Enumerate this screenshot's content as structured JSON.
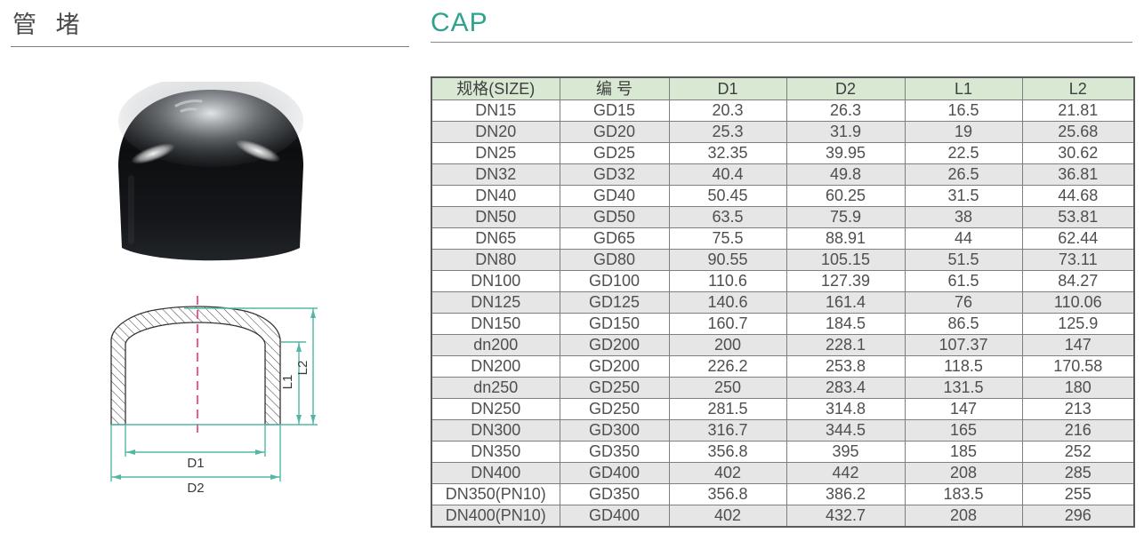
{
  "header": {
    "title_cn": "管 堵",
    "title_en": "CAP"
  },
  "table": {
    "columns": [
      "规格(SIZE)",
      "编 号",
      "D1",
      "D2",
      "L1",
      "L2"
    ],
    "rows": [
      [
        "DN15",
        "GD15",
        "20.3",
        "26.3",
        "16.5",
        "21.81"
      ],
      [
        "DN20",
        "GD20",
        "25.3",
        "31.9",
        "19",
        "25.68"
      ],
      [
        "DN25",
        "GD25",
        "32.35",
        "39.95",
        "22.5",
        "30.62"
      ],
      [
        "DN32",
        "GD32",
        "40.4",
        "49.8",
        "26.5",
        "36.81"
      ],
      [
        "DN40",
        "GD40",
        "50.45",
        "60.25",
        "31.5",
        "44.68"
      ],
      [
        "DN50",
        "GD50",
        "63.5",
        "75.9",
        "38",
        "53.81"
      ],
      [
        "DN65",
        "GD65",
        "75.5",
        "88.91",
        "44",
        "62.44"
      ],
      [
        "DN80",
        "GD80",
        "90.55",
        "105.15",
        "51.5",
        "73.11"
      ],
      [
        "DN100",
        "GD100",
        "110.6",
        "127.39",
        "61.5",
        "84.27"
      ],
      [
        "DN125",
        "GD125",
        "140.6",
        "161.4",
        "76",
        "110.06"
      ],
      [
        "DN150",
        "GD150",
        "160.7",
        "184.5",
        "86.5",
        "125.9"
      ],
      [
        "dn200",
        "GD200",
        "200",
        "228.1",
        "107.37",
        "147"
      ],
      [
        "DN200",
        "GD200",
        "226.2",
        "253.8",
        "118.5",
        "170.58"
      ],
      [
        "dn250",
        "GD250",
        "250",
        "283.4",
        "131.5",
        "180"
      ],
      [
        "DN250",
        "GD250",
        "281.5",
        "314.8",
        "147",
        "213"
      ],
      [
        "DN300",
        "GD300",
        "316.7",
        "344.5",
        "165",
        "216"
      ],
      [
        "DN350",
        "GD350",
        "356.8",
        "395",
        "185",
        "252"
      ],
      [
        "DN400",
        "GD400",
        "402",
        "442",
        "208",
        "285"
      ],
      [
        "DN350(PN10)",
        "GD350",
        "356.8",
        "386.2",
        "183.5",
        "255"
      ],
      [
        "DN400(PN10)",
        "GD400",
        "402",
        "432.7",
        "208",
        "296"
      ]
    ]
  },
  "diagram": {
    "labels": {
      "d1": "D1",
      "d2": "D2",
      "l1": "L1",
      "l2": "L2"
    }
  },
  "colors": {
    "accent": "#2ea38d",
    "table_header_bg": "#d9e8d3",
    "table_alt_row_bg": "#e6e6e6",
    "dimension_line": "#52b7a4",
    "centerline": "#e8357f"
  }
}
